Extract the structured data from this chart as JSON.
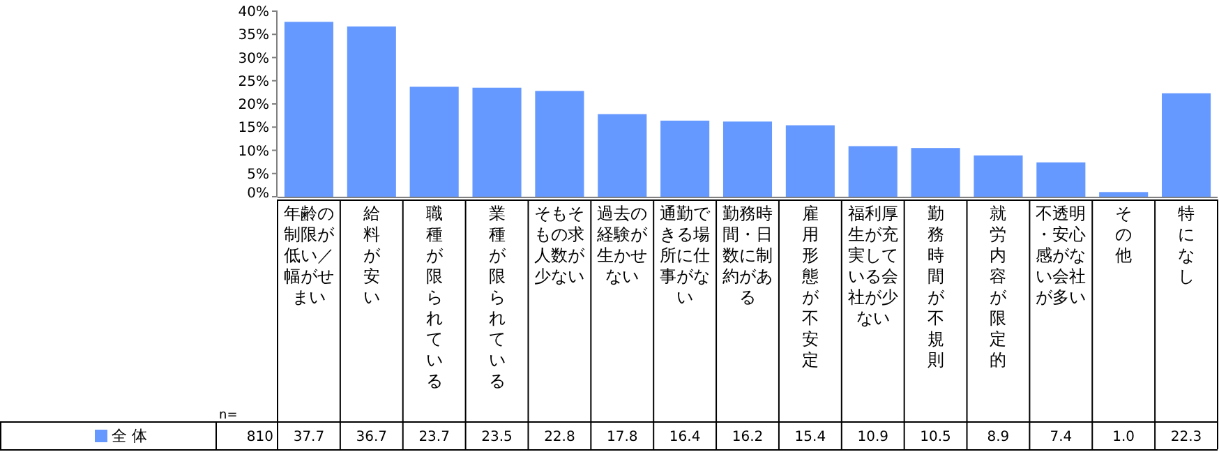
{
  "chart_data": {
    "type": "bar",
    "categories": [
      "年齢の制限が低い／幅がせまい",
      "給料が安い",
      "職種が限られている",
      "業種が限られている",
      "そもそもの求人数が少ない",
      "過去の経験が生かせない",
      "通勤できる場所に仕事がない",
      "勤務時間・日数に制約がある",
      "雇用形態が不安定",
      "福利厚生が充実している会社が少ない",
      "勤務時間が不規則",
      "就労内容が限定的",
      "不透明・安心感がない会社が多い",
      "その他",
      "特になし"
    ],
    "series": [
      {
        "name": "全 体",
        "color": "#6699ff",
        "values": [
          37.7,
          36.7,
          23.7,
          23.5,
          22.8,
          17.8,
          16.4,
          16.2,
          15.4,
          10.9,
          10.5,
          8.9,
          7.4,
          1.0,
          22.3
        ],
        "value_labels": [
          "37.7",
          "36.7",
          "23.7",
          "23.5",
          "22.8",
          "17.8",
          "16.4",
          "16.2",
          "15.4",
          "10.9",
          "10.5",
          "8.9",
          "7.4",
          "1.0",
          "22.3"
        ]
      }
    ],
    "ylim": [
      0,
      40
    ],
    "yticks": [
      {
        "value": 0,
        "label": "0%"
      },
      {
        "value": 5,
        "label": "5%"
      },
      {
        "value": 10,
        "label": "10%"
      },
      {
        "value": 15,
        "label": "15%"
      },
      {
        "value": 20,
        "label": "20%"
      },
      {
        "value": 25,
        "label": "25%"
      },
      {
        "value": 30,
        "label": "30%"
      },
      {
        "value": 35,
        "label": "35%"
      },
      {
        "value": 40,
        "label": "40%"
      }
    ],
    "legend": "bottom left",
    "annotations": [
      "n=",
      "810"
    ]
  }
}
